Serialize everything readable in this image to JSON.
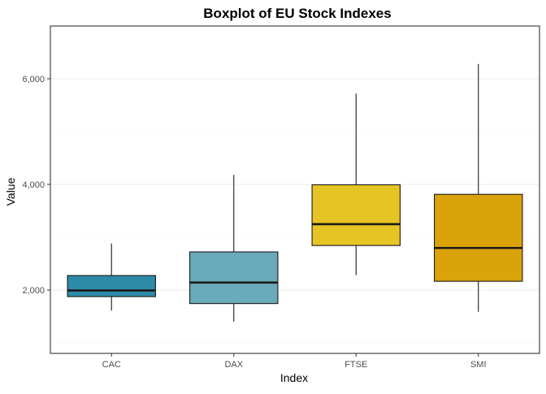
{
  "chart_data": {
    "type": "boxplot",
    "title": "Boxplot of EU Stock Indexes",
    "xlabel": "Index",
    "ylabel": "Value",
    "ylim": [
      800,
      7000
    ],
    "yticks": [
      2000,
      4000,
      6000
    ],
    "ytick_labels": [
      "2,000",
      "4,000",
      "6,000"
    ],
    "grid": true,
    "legend": "none",
    "categories": [
      "CAC",
      "DAX",
      "FTSE",
      "SMI"
    ],
    "boxes": [
      {
        "name": "CAC",
        "min": 1611,
        "q1": 1875,
        "median": 1992,
        "q3": 2274,
        "max": 2880,
        "color": "#2E8BA8"
      },
      {
        "name": "DAX",
        "min": 1402,
        "q1": 1744,
        "median": 2141,
        "q3": 2722,
        "max": 4180,
        "color": "#6AAABA"
      },
      {
        "name": "FTSE",
        "min": 2281,
        "q1": 2843,
        "median": 3247,
        "q3": 3993,
        "max": 5720,
        "color": "#E5C424"
      },
      {
        "name": "SMI",
        "min": 1587,
        "q1": 2166,
        "median": 2796,
        "q3": 3812,
        "max": 6280,
        "color": "#DBA30A"
      }
    ]
  }
}
